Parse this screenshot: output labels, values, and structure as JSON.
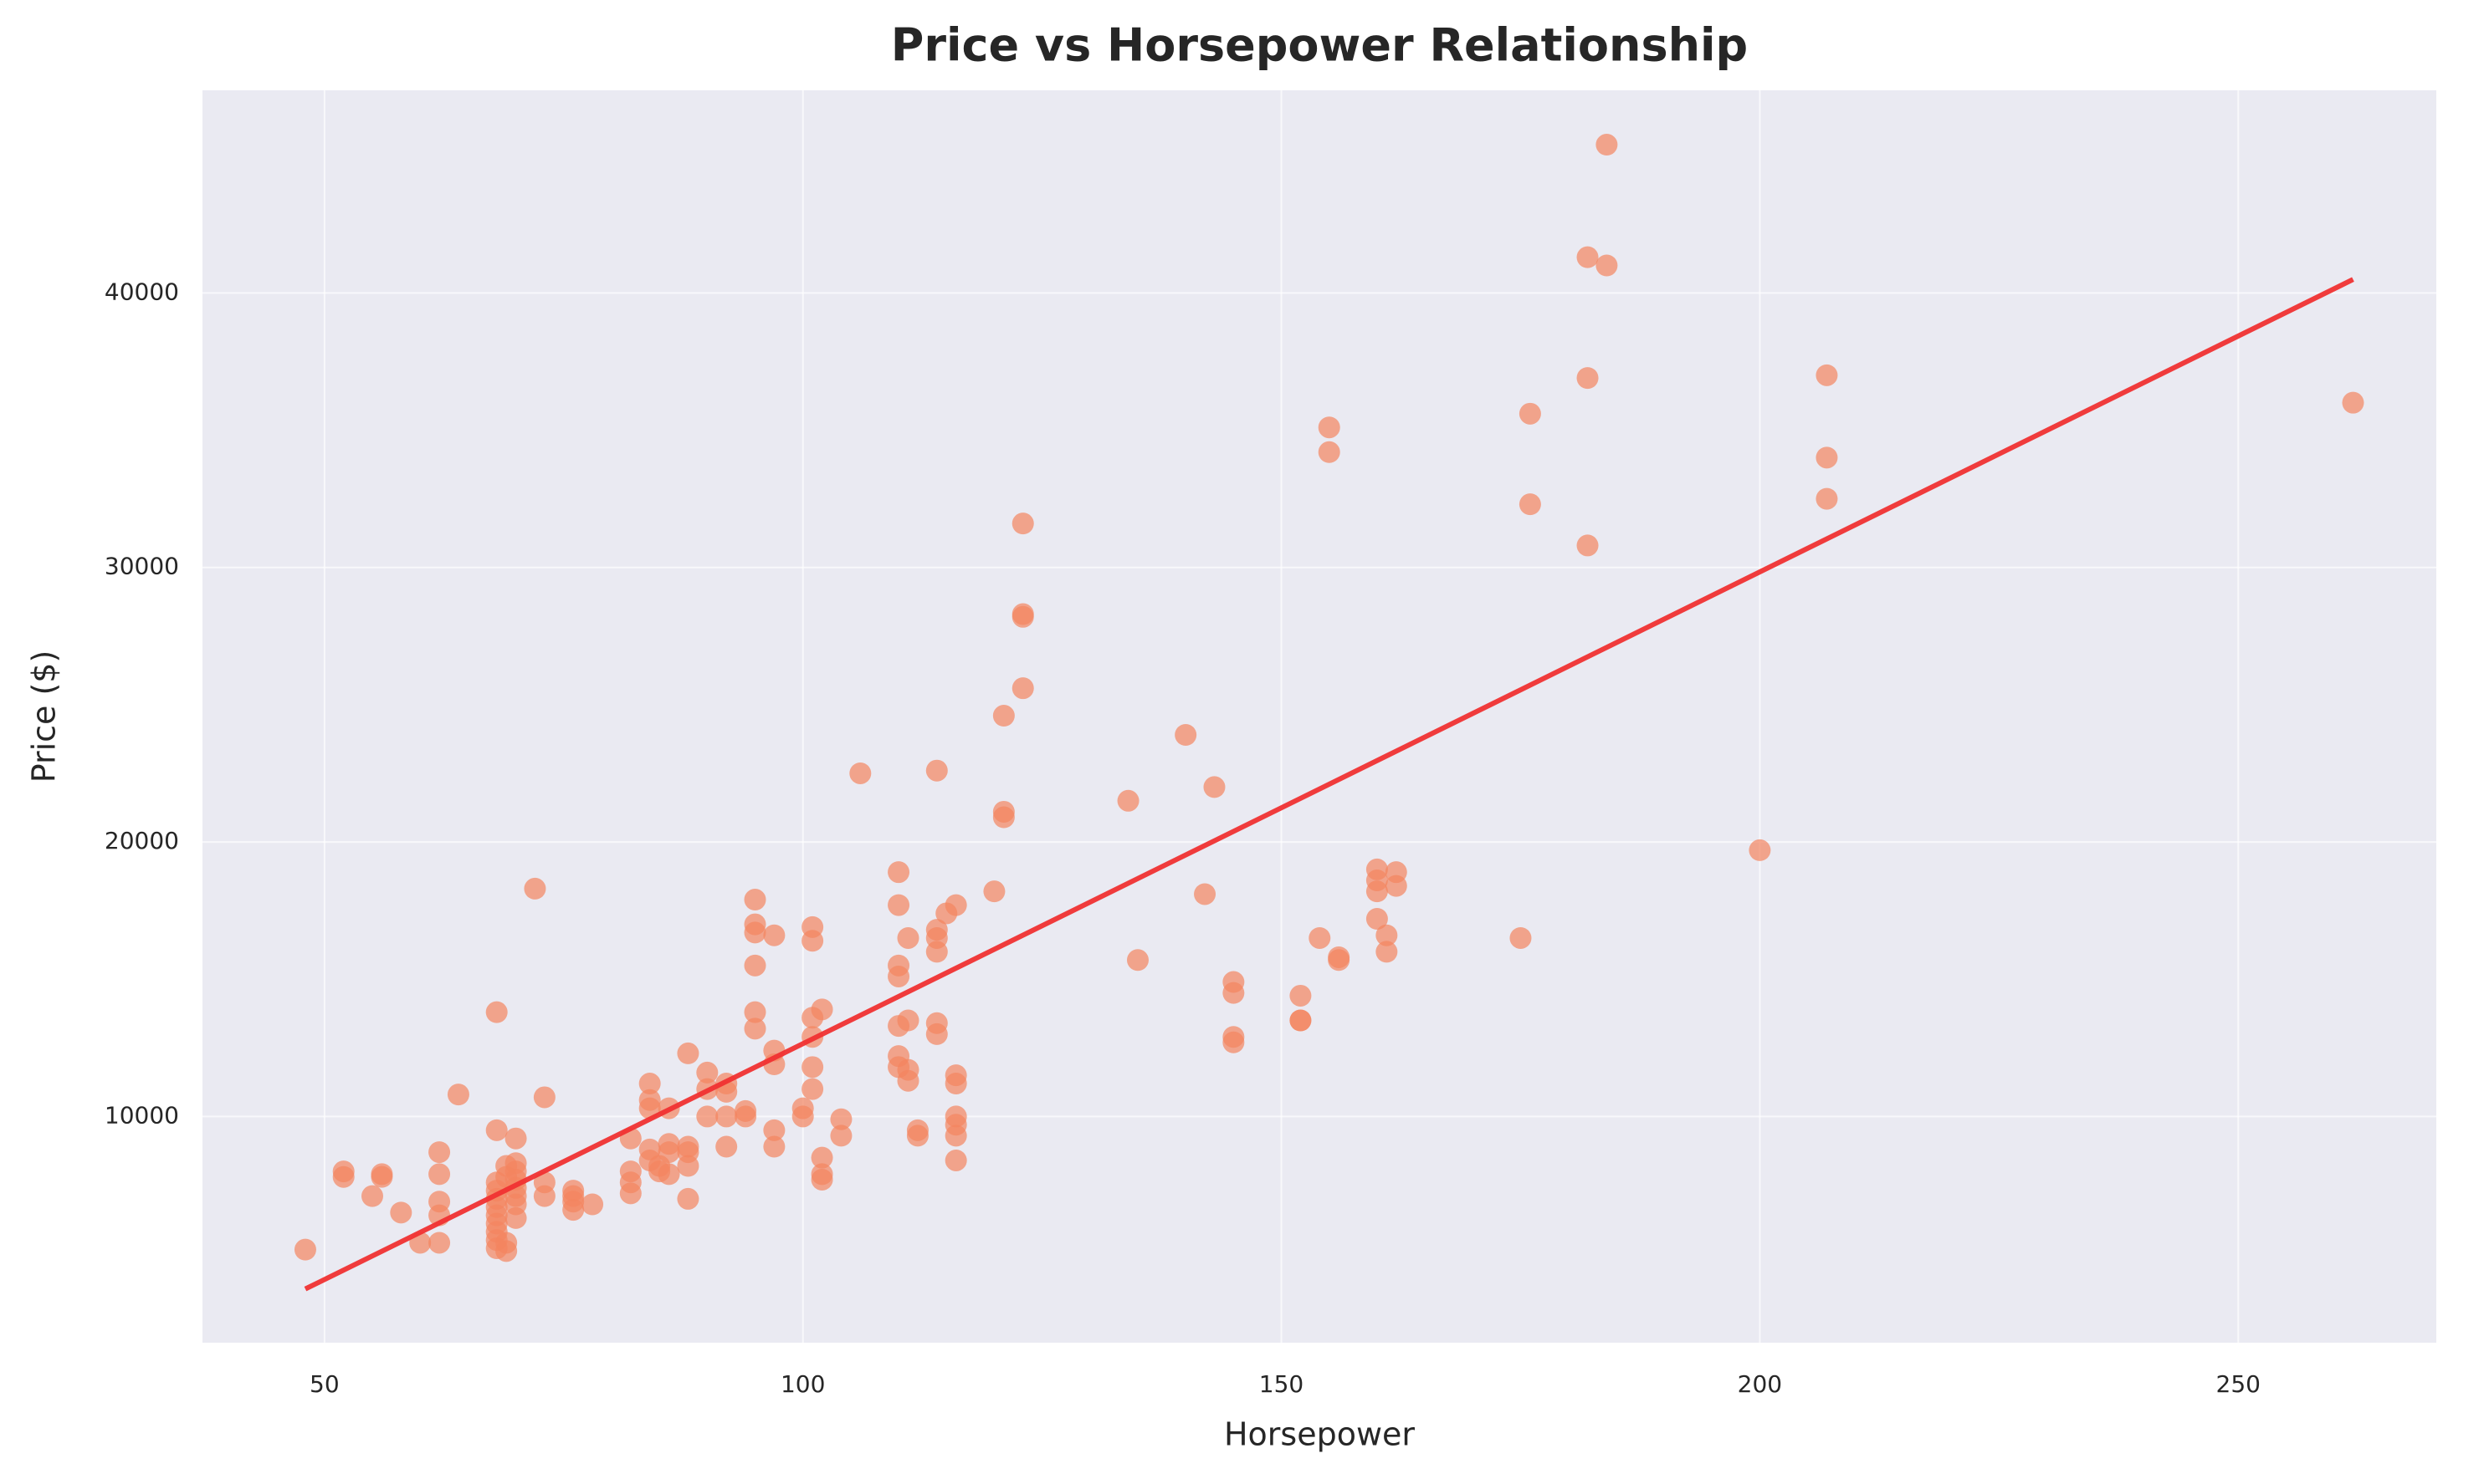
{
  "chart_data": {
    "type": "scatter",
    "title": "Price vs Horsepower Relationship",
    "x_label": "Horsepower",
    "y_label": "Price ($)",
    "xlim": [
      37.25,
      270.7
    ],
    "ylim": [
      1760,
      47380
    ],
    "xticks": [
      50,
      100,
      150,
      200,
      250
    ],
    "yticks": [
      10000,
      20000,
      30000,
      40000
    ],
    "grid": true,
    "series": [
      {
        "color": "#f4845f",
        "x": [
          48,
          52,
          52,
          55,
          56,
          56,
          58,
          60,
          62,
          62,
          62,
          62,
          62,
          64,
          68,
          68,
          68,
          68,
          68,
          68,
          68,
          68,
          68,
          68,
          68,
          69,
          69,
          69,
          69,
          70,
          70,
          70,
          70,
          70,
          70,
          70,
          70,
          72,
          73,
          73,
          73,
          76,
          76,
          76,
          76,
          78,
          82,
          82,
          82,
          82,
          84,
          84,
          84,
          84,
          84,
          85,
          85,
          86,
          86,
          86,
          86,
          88,
          88,
          88,
          88,
          88,
          90,
          90,
          90,
          92,
          92,
          92,
          92,
          94,
          94,
          95,
          95,
          95,
          95,
          95,
          95,
          97,
          97,
          97,
          97,
          97,
          100,
          100,
          101,
          101,
          101,
          101,
          101,
          101,
          102,
          102,
          102,
          102,
          104,
          104,
          106,
          110,
          110,
          110,
          110,
          110,
          110,
          110,
          111,
          111,
          111,
          111,
          112,
          112,
          114,
          114,
          114,
          114,
          114,
          114,
          115,
          116,
          116,
          116,
          116,
          116,
          116,
          116,
          120,
          121,
          121,
          121,
          123,
          123,
          123,
          123,
          134,
          135,
          140,
          142,
          143,
          145,
          145,
          145,
          145,
          152,
          152,
          152,
          154,
          155,
          155,
          156,
          156,
          160,
          160,
          160,
          160,
          161,
          161,
          162,
          162,
          175,
          176,
          176,
          182,
          182,
          182,
          184,
          184,
          200,
          207,
          207,
          207,
          262
        ],
        "values": [
          5151,
          7999,
          7799,
          7100,
          7900,
          7800,
          6500,
          5400,
          5400,
          8700,
          7900,
          6900,
          6400,
          10800,
          13800,
          9500,
          7600,
          7300,
          7000,
          6700,
          6400,
          6100,
          5800,
          5500,
          5200,
          8200,
          5100,
          5400,
          7800,
          9200,
          8300,
          8000,
          7700,
          7400,
          7100,
          6800,
          6300,
          18300,
          10700,
          7600,
          7100,
          7300,
          7100,
          6900,
          6600,
          6800,
          9200,
          8000,
          7600,
          7200,
          11200,
          10600,
          10300,
          8800,
          8400,
          8200,
          8000,
          10300,
          9000,
          8700,
          7900,
          12300,
          8900,
          8700,
          8200,
          7000,
          11600,
          11000,
          10000,
          11200,
          10900,
          10000,
          8900,
          10200,
          10000,
          17900,
          17000,
          16700,
          15500,
          13800,
          13200,
          16600,
          12400,
          11900,
          9500,
          8900,
          10300,
          10000,
          16900,
          16400,
          13600,
          12900,
          11800,
          11000,
          13900,
          8500,
          7900,
          7700,
          9900,
          9300,
          22500,
          18900,
          17700,
          15500,
          15100,
          13300,
          12200,
          11800,
          16500,
          13500,
          11700,
          11300,
          9500,
          9300,
          22600,
          16800,
          16500,
          16000,
          13400,
          13000,
          17400,
          17700,
          11500,
          11200,
          10000,
          9700,
          9300,
          8400,
          18200,
          24600,
          21100,
          20900,
          31600,
          28200,
          28300,
          25600,
          21500,
          15700,
          23900,
          18100,
          22000,
          14900,
          14500,
          12900,
          12700,
          14400,
          13500,
          13500,
          16500,
          35100,
          34200,
          15700,
          15800,
          19000,
          18600,
          18200,
          17200,
          16600,
          16000,
          18900,
          18400,
          16500,
          35600,
          32300,
          41300,
          36900,
          30800,
          45400,
          41000,
          19700,
          37000,
          34000,
          32500,
          36000
        ]
      },
      {
        "type": "line",
        "color": "#f03232",
        "x": [
          48,
          262
        ],
        "values": [
          3717,
          40490
        ]
      }
    ]
  }
}
